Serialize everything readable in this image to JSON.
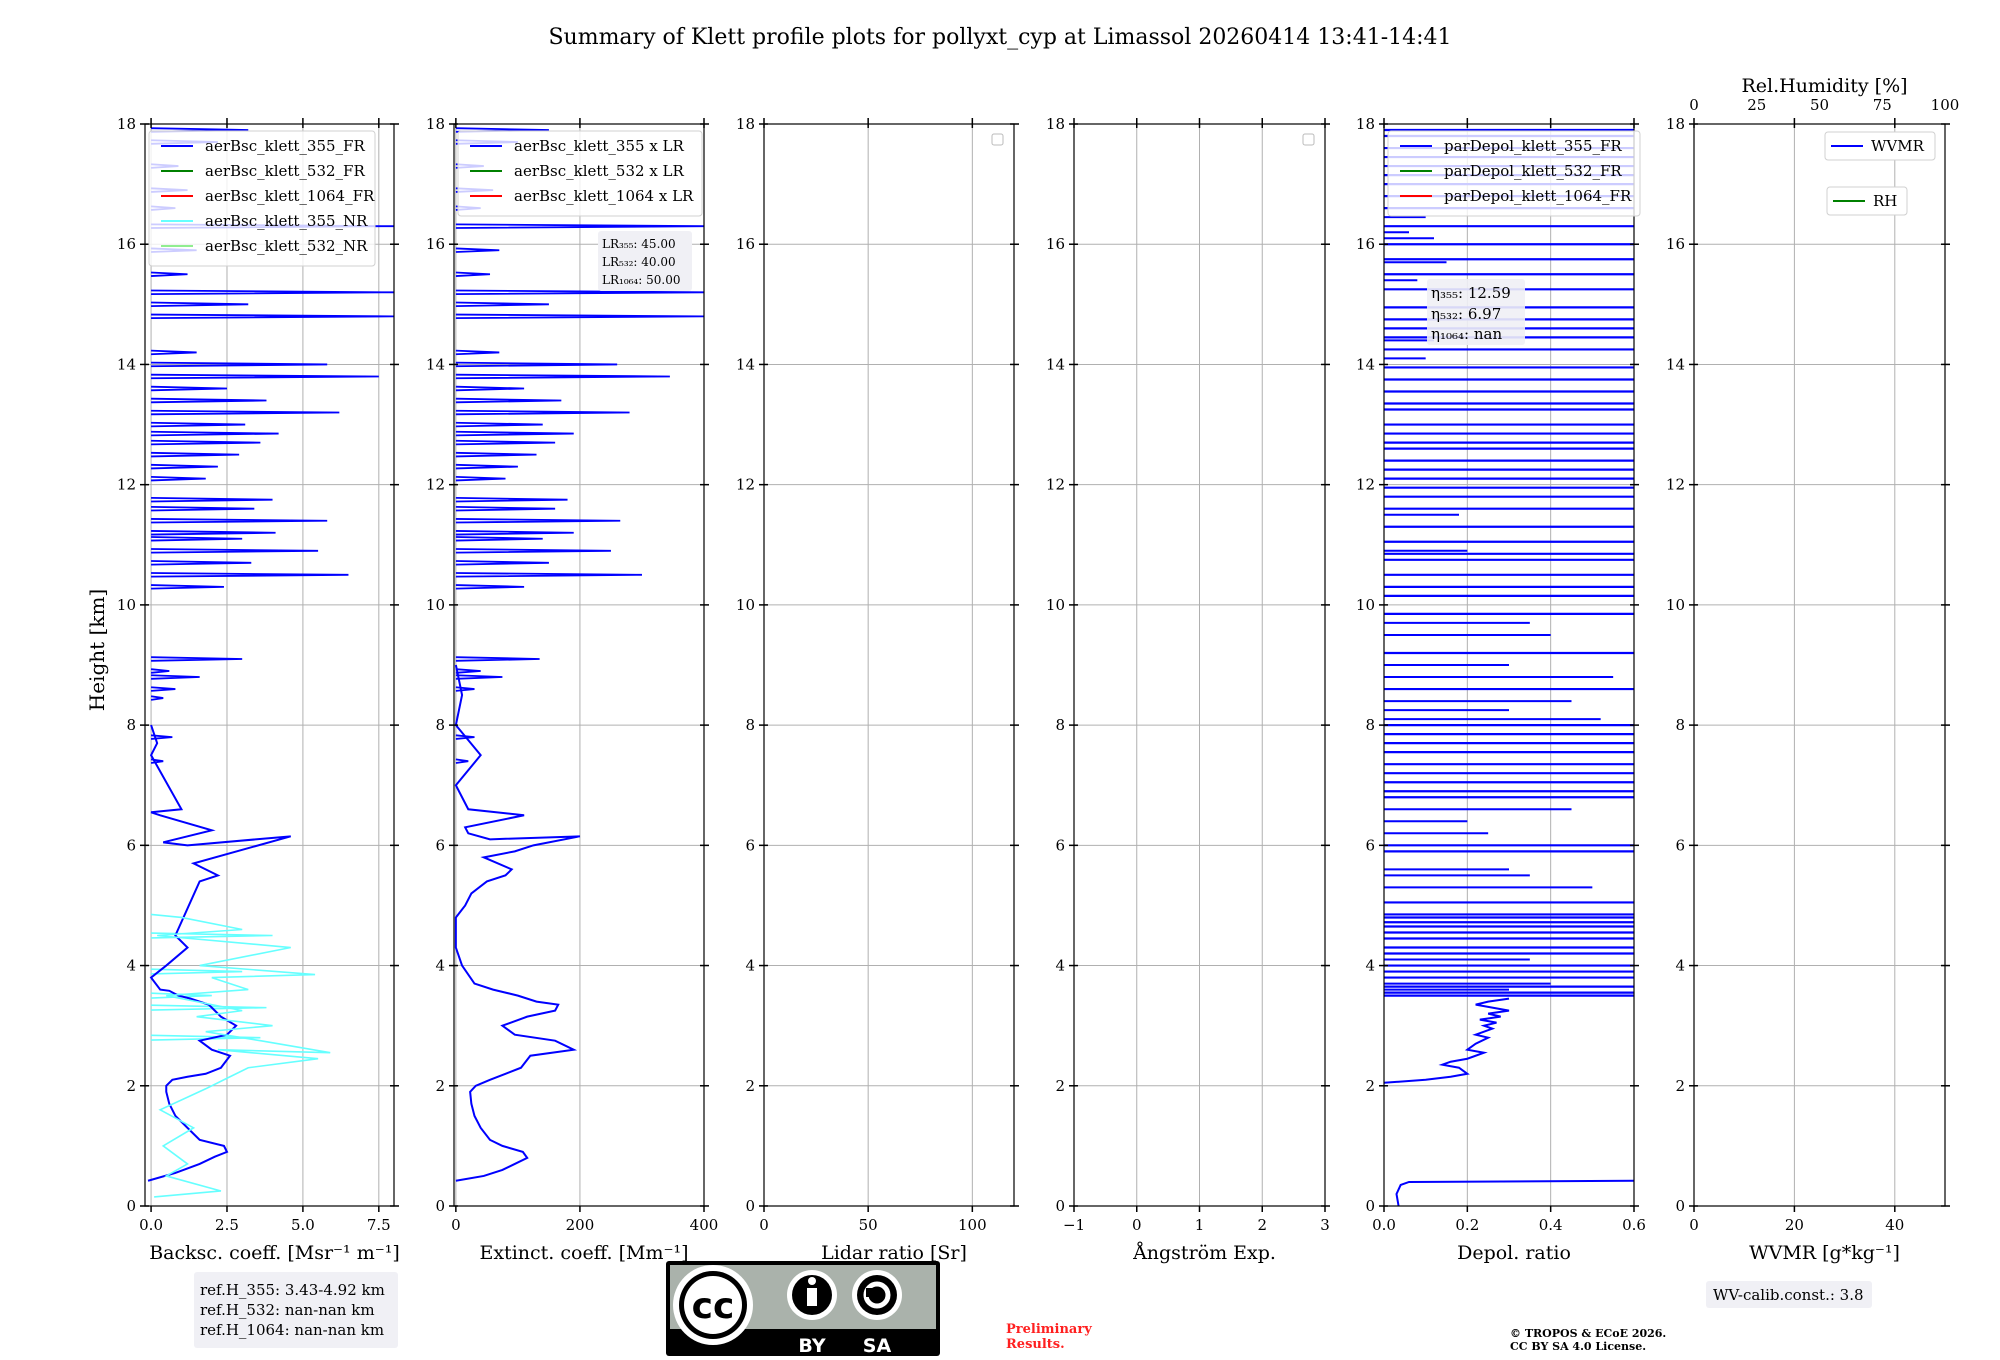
{
  "title": "Summary of Klett profile plots for pollyxt_cyp at Limassol 20260414 13:41-14:41",
  "ylabel": "Height [km]",
  "colors": {
    "blue": "#0000ff",
    "green": "#008000",
    "red": "#ff0000",
    "cyan": "#66ffff",
    "lightgreen": "#90ee90",
    "grid": "#b0b0b0",
    "box": "#f0f0f5"
  },
  "chart_data": [
    {
      "id": "backscatter",
      "type": "line",
      "xlabel": "Backsc. coeff. [Msr⁻¹ m⁻¹]",
      "xlim": [
        -0.2,
        8.0
      ],
      "ylim": [
        0,
        18
      ],
      "xticks": [
        0,
        2.5,
        5.0,
        7.5
      ],
      "xtick_labels": [
        "0.0",
        "2.5",
        "5.0",
        "7.5"
      ],
      "yticks": [
        0,
        2,
        4,
        6,
        8,
        10,
        12,
        14,
        16,
        18
      ],
      "legend": [
        {
          "label": "aerBsc_klett_355_FR",
          "color": "#0000ff"
        },
        {
          "label": "aerBsc_klett_532_FR",
          "color": "#008000"
        },
        {
          "label": "aerBsc_klett_1064_FR",
          "color": "#ff0000"
        },
        {
          "label": "aerBsc_klett_355_NR",
          "color": "#66ffff"
        },
        {
          "label": "aerBsc_klett_532_NR",
          "color": "#90ee90"
        }
      ],
      "series": [
        {
          "name": "aerBsc_klett_355_FR",
          "color": "#0000ff",
          "x": [
            -0.1,
            0.8,
            1.6,
            2.1,
            2.5,
            2.4,
            1.6,
            1.2,
            0.8,
            0.6,
            0.5,
            0.5,
            0.7,
            1.2,
            1.8,
            2.3,
            2.6,
            2.0,
            1.6,
            2.5,
            2.8,
            2.3,
            2.1,
            1.9,
            1.3,
            0.9,
            0.6,
            0.3,
            0.0,
            0.5,
            1.2,
            0.8,
            1.6,
            2.2,
            1.4,
            4.6,
            1.2,
            0.4,
            2.0,
            0.3,
            0.0,
            1.0,
            0.0,
            0.2,
            0.0
          ],
          "y": [
            0.42,
            0.55,
            0.7,
            0.82,
            0.9,
            1.0,
            1.1,
            1.3,
            1.5,
            1.7,
            1.9,
            2.0,
            2.1,
            2.15,
            2.2,
            2.3,
            2.5,
            2.6,
            2.75,
            2.85,
            3.0,
            3.15,
            3.25,
            3.35,
            3.45,
            3.5,
            3.58,
            3.6,
            3.8,
            4.0,
            4.3,
            4.5,
            5.4,
            5.5,
            5.7,
            6.15,
            6.0,
            6.05,
            6.25,
            6.5,
            6.55,
            6.6,
            7.5,
            7.7,
            8.0
          ]
        },
        {
          "name": "aerBsc_klett_355_NR",
          "color": "#66ffff",
          "x": [
            0.1,
            2.3,
            0.5,
            1.2,
            0.4,
            1.4,
            0.3,
            1.8,
            2.4,
            3.2,
            5.5,
            2.2,
            5.9,
            3.6,
            1.8,
            4.0,
            1.5,
            3.0,
            0.5,
            3.2,
            2.0,
            5.4,
            1.6,
            4.6,
            0.2,
            3.0,
            1.0,
            0.0
          ],
          "y": [
            0.15,
            0.25,
            0.5,
            0.7,
            1.0,
            1.3,
            1.6,
            1.95,
            2.1,
            2.3,
            2.45,
            2.6,
            2.55,
            2.75,
            2.9,
            3.0,
            3.15,
            3.25,
            3.5,
            3.6,
            3.8,
            3.85,
            4.0,
            4.3,
            4.5,
            4.6,
            4.8,
            4.85
          ]
        }
      ],
      "spikes": [
        {
          "h": 9.1,
          "v": 3.0
        },
        {
          "h": 8.9,
          "v": 0.6
        },
        {
          "h": 8.8,
          "v": 1.6
        },
        {
          "h": 8.6,
          "v": 0.8
        },
        {
          "h": 8.45,
          "v": 0.4
        },
        {
          "h": 7.8,
          "v": 0.7
        },
        {
          "h": 7.4,
          "v": 0.4
        },
        {
          "h": 10.3,
          "v": 2.4
        },
        {
          "h": 10.5,
          "v": 6.5
        },
        {
          "h": 10.7,
          "v": 3.3
        },
        {
          "h": 10.9,
          "v": 5.5
        },
        {
          "h": 11.1,
          "v": 3.0
        },
        {
          "h": 11.2,
          "v": 4.1
        },
        {
          "h": 11.4,
          "v": 5.8
        },
        {
          "h": 11.6,
          "v": 3.4
        },
        {
          "h": 11.75,
          "v": 4.0
        },
        {
          "h": 12.1,
          "v": 1.8
        },
        {
          "h": 12.3,
          "v": 2.2
        },
        {
          "h": 12.5,
          "v": 2.9
        },
        {
          "h": 12.7,
          "v": 3.6
        },
        {
          "h": 12.85,
          "v": 4.2
        },
        {
          "h": 13.0,
          "v": 3.1
        },
        {
          "h": 13.2,
          "v": 6.2
        },
        {
          "h": 13.4,
          "v": 3.8
        },
        {
          "h": 13.6,
          "v": 2.5
        },
        {
          "h": 13.8,
          "v": 7.5
        },
        {
          "h": 14.0,
          "v": 5.8
        },
        {
          "h": 14.2,
          "v": 1.5
        },
        {
          "h": 14.8,
          "v": 8.0
        },
        {
          "h": 15.0,
          "v": 3.2
        },
        {
          "h": 15.2,
          "v": 8.0
        },
        {
          "h": 15.5,
          "v": 1.2
        },
        {
          "h": 15.9,
          "v": 1.5
        },
        {
          "h": 16.3,
          "v": 8.0
        },
        {
          "h": 16.6,
          "v": 0.8
        },
        {
          "h": 16.9,
          "v": 1.2
        },
        {
          "h": 17.3,
          "v": 0.9
        },
        {
          "h": 17.7,
          "v": 2.2
        },
        {
          "h": 17.9,
          "v": 3.2
        }
      ],
      "cyan_spikes": [
        {
          "h": 4.5,
          "v": 4.0
        },
        {
          "h": 3.9,
          "v": 3.0
        },
        {
          "h": 3.5,
          "v": 2.0
        },
        {
          "h": 3.3,
          "v": 3.8
        },
        {
          "h": 2.8,
          "v": 3.6
        }
      ]
    },
    {
      "id": "extinction",
      "type": "line",
      "xlabel": "Extinct. coeff. [Mm⁻¹]",
      "xlim": [
        -3,
        400
      ],
      "ylim": [
        0,
        18
      ],
      "xticks": [
        0,
        200,
        400
      ],
      "xtick_labels": [
        "0",
        "200",
        "400"
      ],
      "yticks": [
        0,
        2,
        4,
        6,
        8,
        10,
        12,
        14,
        16,
        18
      ],
      "legend": [
        {
          "label": "aerBsc_klett_355 x LR",
          "color": "#0000ff"
        },
        {
          "label": "aerBsc_klett_532 x LR",
          "color": "#008000"
        },
        {
          "label": "aerBsc_klett_1064 x LR",
          "color": "#ff0000"
        }
      ],
      "series": [
        {
          "name": "aerBsc_klett_355 x LR",
          "color": "#0000ff",
          "x": [
            0,
            45,
            75,
            95,
            115,
            108,
            75,
            55,
            40,
            30,
            25,
            23,
            32,
            55,
            80,
            105,
            120,
            190,
            160,
            95,
            75,
            115,
            160,
            165,
            130,
            100,
            80,
            60,
            30,
            10,
            0,
            0,
            15,
            25,
            50,
            80,
            90,
            45,
            95,
            125,
            200,
            55,
            20,
            15,
            110,
            20,
            0,
            40,
            0,
            10,
            0
          ],
          "y": [
            0.42,
            0.5,
            0.6,
            0.7,
            0.8,
            0.9,
            1.0,
            1.1,
            1.3,
            1.5,
            1.7,
            1.9,
            2.0,
            2.1,
            2.2,
            2.3,
            2.5,
            2.6,
            2.75,
            2.85,
            3.0,
            3.15,
            3.25,
            3.35,
            3.4,
            3.5,
            3.55,
            3.6,
            3.7,
            4.0,
            4.3,
            4.8,
            5.0,
            5.2,
            5.4,
            5.5,
            5.6,
            5.8,
            5.9,
            6.0,
            6.15,
            6.1,
            6.2,
            6.3,
            6.5,
            6.6,
            7.0,
            7.5,
            8.0,
            8.5,
            9.0
          ]
        }
      ],
      "spikes": [
        {
          "h": 9.1,
          "v": 135
        },
        {
          "h": 8.9,
          "v": 40
        },
        {
          "h": 8.8,
          "v": 75
        },
        {
          "h": 8.6,
          "v": 30
        },
        {
          "h": 7.8,
          "v": 30
        },
        {
          "h": 7.4,
          "v": 20
        },
        {
          "h": 10.3,
          "v": 110
        },
        {
          "h": 10.5,
          "v": 300
        },
        {
          "h": 10.7,
          "v": 150
        },
        {
          "h": 10.9,
          "v": 250
        },
        {
          "h": 11.1,
          "v": 140
        },
        {
          "h": 11.2,
          "v": 190
        },
        {
          "h": 11.4,
          "v": 265
        },
        {
          "h": 11.6,
          "v": 160
        },
        {
          "h": 11.75,
          "v": 180
        },
        {
          "h": 12.1,
          "v": 80
        },
        {
          "h": 12.3,
          "v": 100
        },
        {
          "h": 12.5,
          "v": 130
        },
        {
          "h": 12.7,
          "v": 160
        },
        {
          "h": 12.85,
          "v": 190
        },
        {
          "h": 13.0,
          "v": 140
        },
        {
          "h": 13.2,
          "v": 280
        },
        {
          "h": 13.4,
          "v": 170
        },
        {
          "h": 13.6,
          "v": 110
        },
        {
          "h": 13.8,
          "v": 345
        },
        {
          "h": 14.0,
          "v": 260
        },
        {
          "h": 14.2,
          "v": 70
        },
        {
          "h": 14.8,
          "v": 400
        },
        {
          "h": 15.0,
          "v": 150
        },
        {
          "h": 15.2,
          "v": 400
        },
        {
          "h": 15.5,
          "v": 55
        },
        {
          "h": 15.9,
          "v": 70
        },
        {
          "h": 16.3,
          "v": 400
        },
        {
          "h": 16.6,
          "v": 40
        },
        {
          "h": 16.9,
          "v": 60
        },
        {
          "h": 17.3,
          "v": 45
        },
        {
          "h": 17.7,
          "v": 100
        },
        {
          "h": 17.9,
          "v": 150
        }
      ],
      "annotation": {
        "lr355": "LR₃₅₅: 45.00",
        "lr532": "LR₅₃₂: 40.00",
        "lr1064": "LR₁₀₆₄: 50.00"
      }
    },
    {
      "id": "lidarratio",
      "type": "line",
      "xlabel": "Lidar ratio [Sr]",
      "xlim": [
        0,
        120
      ],
      "ylim": [
        0,
        18
      ],
      "xticks": [
        0,
        50,
        100
      ],
      "xtick_labels": [
        "0",
        "50",
        "100"
      ],
      "yticks": [
        0,
        2,
        4,
        6,
        8,
        10,
        12,
        14,
        16,
        18
      ],
      "series": []
    },
    {
      "id": "angstrom",
      "type": "line",
      "xlabel": "Ångström Exp.",
      "xlim": [
        -1,
        3
      ],
      "ylim": [
        0,
        18
      ],
      "xticks": [
        -1,
        0,
        1,
        2,
        3
      ],
      "xtick_labels": [
        "−1",
        "0",
        "1",
        "2",
        "3"
      ],
      "yticks": [
        0,
        2,
        4,
        6,
        8,
        10,
        12,
        14,
        16,
        18
      ],
      "series": []
    },
    {
      "id": "depol",
      "type": "line",
      "xlabel": "Depol. ratio",
      "xlim": [
        0,
        0.6
      ],
      "ylim": [
        0,
        18
      ],
      "xticks": [
        0,
        0.2,
        0.4,
        0.6
      ],
      "xtick_labels": [
        "0.0",
        "0.2",
        "0.4",
        "0.6"
      ],
      "yticks": [
        0,
        2,
        4,
        6,
        8,
        10,
        12,
        14,
        16,
        18
      ],
      "legend": [
        {
          "label": "parDepol_klett_355_FR",
          "color": "#0000ff"
        },
        {
          "label": "parDepol_klett_532_FR",
          "color": "#008000"
        },
        {
          "label": "parDepol_klett_1064_FR",
          "color": "#ff0000"
        }
      ],
      "series": [
        {
          "name": "parDepol_klett_355_FR",
          "color": "#0000ff",
          "x": [
            0.6,
            0.06,
            0.04,
            0.03,
            0.035
          ],
          "y": [
            0.42,
            0.4,
            0.35,
            0.2,
            0.0
          ]
        },
        {
          "name": "parDepol_klett_355_FR_upper",
          "color": "#0000ff",
          "x": [
            0.0,
            0.1,
            0.16,
            0.2,
            0.18,
            0.14,
            0.16,
            0.2,
            0.24,
            0.2,
            0.22,
            0.25,
            0.22,
            0.26,
            0.24,
            0.27,
            0.23,
            0.28,
            0.25,
            0.3,
            0.26,
            0.22,
            0.25,
            0.3
          ],
          "y": [
            2.05,
            2.1,
            2.15,
            2.2,
            2.3,
            2.35,
            2.4,
            2.45,
            2.55,
            2.6,
            2.7,
            2.8,
            2.85,
            2.95,
            3.0,
            3.05,
            3.1,
            3.15,
            3.2,
            3.25,
            3.3,
            3.35,
            3.4,
            3.45
          ]
        }
      ],
      "bands": [
        3.5,
        3.55,
        3.65,
        3.8,
        3.9,
        4.0,
        4.2,
        4.3,
        4.45,
        4.55,
        4.65,
        4.72,
        4.8,
        4.85,
        5.05,
        5.9,
        6.0,
        6.8,
        6.9,
        7.05,
        7.2,
        7.35,
        7.55,
        7.7,
        7.85,
        8.0,
        8.6,
        9.2,
        9.85,
        10.15,
        10.3,
        10.5,
        10.75,
        10.85,
        11.05,
        11.3,
        11.6,
        11.8,
        11.95,
        12.1,
        12.25,
        12.4,
        12.6,
        12.7,
        12.85,
        13.0,
        13.25,
        13.35,
        13.55,
        13.75,
        13.95,
        14.25,
        14.45,
        14.6,
        14.75,
        14.95,
        15.25,
        15.5,
        15.75,
        16.0,
        16.3,
        16.6,
        16.8,
        17.0,
        17.15,
        17.3,
        17.45,
        17.6,
        17.8,
        17.9
      ],
      "partial": [
        {
          "h": 3.6,
          "v": 0.3
        },
        {
          "h": 3.7,
          "v": 0.4
        },
        {
          "h": 4.1,
          "v": 0.35
        },
        {
          "h": 5.3,
          "v": 0.5
        },
        {
          "h": 5.5,
          "v": 0.35
        },
        {
          "h": 5.6,
          "v": 0.3
        },
        {
          "h": 6.2,
          "v": 0.25
        },
        {
          "h": 6.4,
          "v": 0.2
        },
        {
          "h": 6.6,
          "v": 0.45
        },
        {
          "h": 8.1,
          "v": 0.52
        },
        {
          "h": 8.25,
          "v": 0.3
        },
        {
          "h": 8.4,
          "v": 0.45
        },
        {
          "h": 8.8,
          "v": 0.55
        },
        {
          "h": 9.0,
          "v": 0.3
        },
        {
          "h": 9.5,
          "v": 0.4
        },
        {
          "h": 9.7,
          "v": 0.35
        },
        {
          "h": 10.9,
          "v": 0.2
        },
        {
          "h": 11.5,
          "v": 0.18
        },
        {
          "h": 14.1,
          "v": 0.1
        },
        {
          "h": 14.4,
          "v": 0.12
        },
        {
          "h": 15.4,
          "v": 0.08
        },
        {
          "h": 15.7,
          "v": 0.15
        },
        {
          "h": 16.1,
          "v": 0.12
        },
        {
          "h": 16.2,
          "v": 0.06
        },
        {
          "h": 16.45,
          "v": 0.1
        }
      ],
      "annotation": {
        "e355": "η₃₅₅: 12.59",
        "e532": "η₅₃₂: 6.97",
        "e1064": "η₁₀₆₄: nan"
      }
    },
    {
      "id": "wvmr",
      "type": "line",
      "xlabel": "WVMR [g*kg⁻¹]",
      "xlim": [
        0,
        50
      ],
      "ylim": [
        0,
        18
      ],
      "xticks": [
        0,
        20,
        40
      ],
      "xtick_labels": [
        "0",
        "20",
        "40"
      ],
      "yticks": [
        0,
        2,
        4,
        6,
        8,
        10,
        12,
        14,
        16,
        18
      ],
      "top_axis": {
        "label": "Rel.Humidity [%]",
        "lim": [
          0,
          100
        ],
        "ticks": [
          0,
          25,
          50,
          75,
          100
        ],
        "tick_labels": [
          "0",
          "25",
          "50",
          "75",
          "100"
        ]
      },
      "legend": [
        {
          "label": "WVMR",
          "color": "#0000ff"
        },
        {
          "label": "RH",
          "color": "#008000"
        }
      ],
      "series": []
    }
  ],
  "footer": {
    "ref_h355": "ref.H_355: 3.43-4.92 km",
    "ref_h532": "ref.H_532: nan-nan km",
    "ref_h1064": "ref.H_1064: nan-nan km",
    "preliminary1": "Preliminary",
    "preliminary2": "Results.",
    "copyright1": "© TROPOS & ECoE 2026.",
    "copyright2": "CC BY SA 4.0 License.",
    "wv_calib": "WV-calib.const.: 3.8",
    "cc_text": "cc",
    "cc_by": "BY",
    "cc_sa": "SA"
  }
}
